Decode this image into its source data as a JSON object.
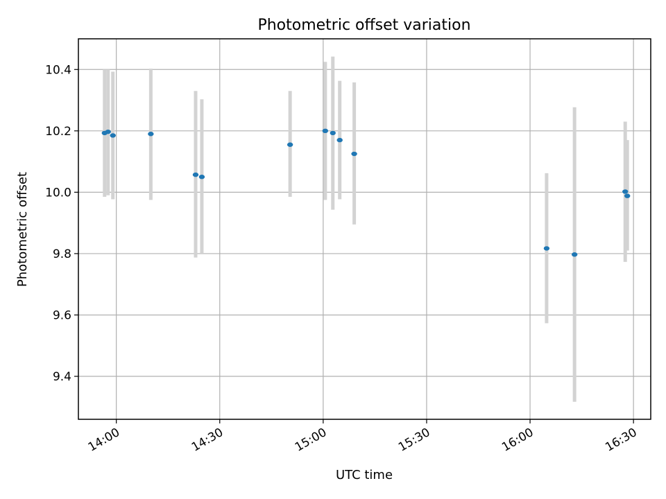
{
  "chart_data": {
    "type": "scatter",
    "title": "Photometric offset variation",
    "xlabel": "UTC time",
    "ylabel": "Photometric offset",
    "xlim": [
      "13:49",
      "16:35"
    ],
    "ylim": [
      9.26,
      10.5
    ],
    "x_ticks": [
      "14:00",
      "14:30",
      "15:00",
      "15:30",
      "16:00",
      "16:30"
    ],
    "y_ticks": [
      "9.4",
      "9.6",
      "9.8",
      "10.0",
      "10.2",
      "10.4"
    ],
    "grid": true,
    "colors": {
      "point": "#1f77b4",
      "errorbar": "#d3d3d3",
      "grid": "#b0b0b0"
    },
    "series": [
      {
        "points": [
          {
            "x": "13:56:36",
            "y": 10.193,
            "yerr_low": 9.985,
            "yerr_high": 10.4
          },
          {
            "x": "13:57:36",
            "y": 10.197,
            "yerr_low": 9.99,
            "yerr_high": 10.4
          },
          {
            "x": "13:59:00",
            "y": 10.185,
            "yerr_low": 9.977,
            "yerr_high": 10.393
          },
          {
            "x": "14:10:00",
            "y": 10.19,
            "yerr_low": 9.975,
            "yerr_high": 10.403
          },
          {
            "x": "14:23:00",
            "y": 10.057,
            "yerr_low": 9.787,
            "yerr_high": 10.33
          },
          {
            "x": "14:24:48",
            "y": 10.05,
            "yerr_low": 9.8,
            "yerr_high": 10.303
          },
          {
            "x": "14:50:24",
            "y": 10.155,
            "yerr_low": 9.985,
            "yerr_high": 10.33
          },
          {
            "x": "15:00:36",
            "y": 10.2,
            "yerr_low": 9.975,
            "yerr_high": 10.425
          },
          {
            "x": "15:02:48",
            "y": 10.193,
            "yerr_low": 9.943,
            "yerr_high": 10.442
          },
          {
            "x": "15:04:48",
            "y": 10.17,
            "yerr_low": 9.977,
            "yerr_high": 10.363
          },
          {
            "x": "15:09:00",
            "y": 10.125,
            "yerr_low": 9.895,
            "yerr_high": 10.358
          },
          {
            "x": "16:04:48",
            "y": 9.817,
            "yerr_low": 9.573,
            "yerr_high": 10.062
          },
          {
            "x": "16:12:54",
            "y": 9.797,
            "yerr_low": 9.317,
            "yerr_high": 10.277
          },
          {
            "x": "16:27:36",
            "y": 10.002,
            "yerr_low": 9.773,
            "yerr_high": 10.23
          },
          {
            "x": "16:28:12",
            "y": 9.988,
            "yerr_low": 9.81,
            "yerr_high": 10.17
          }
        ]
      }
    ]
  }
}
